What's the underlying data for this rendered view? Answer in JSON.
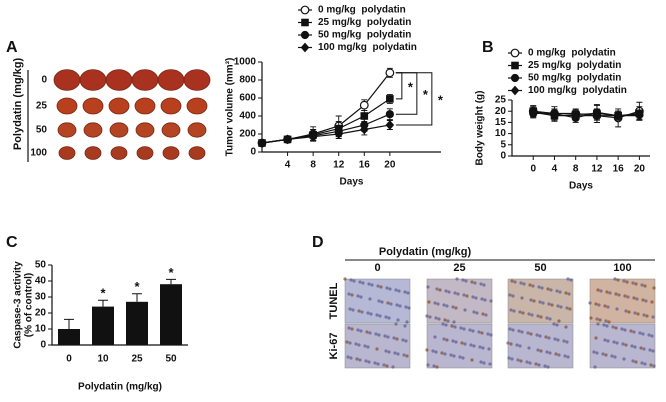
{
  "panels": [
    "A",
    "B",
    "C",
    "D"
  ],
  "tumor_photos": {
    "axis_label": "Polydatin (mg/kg)",
    "rows": [
      "0",
      "25",
      "50",
      "100"
    ]
  },
  "chart_data": [
    {
      "type": "line",
      "x_label": "Days",
      "y_label": "Tumor volume (mm³)",
      "x": [
        0,
        4,
        8,
        12,
        16,
        20
      ],
      "xlim": [
        0,
        28
      ],
      "xticks": [
        4,
        8,
        12,
        16,
        20
      ],
      "ylim": [
        0,
        1000
      ],
      "yticks": [
        0,
        200,
        400,
        600,
        800,
        1000
      ],
      "series": [
        {
          "name": "0 mg/kg  polydatin",
          "color": "#111111",
          "marker": "open-circle",
          "values": [
            100,
            140,
            200,
            290,
            520,
            880
          ],
          "errors": [
            0,
            30,
            80,
            110,
            60,
            50
          ]
        },
        {
          "name": "25 mg/kg  polydatin",
          "color": "#111111",
          "marker": "square",
          "values": [
            100,
            140,
            190,
            260,
            400,
            590
          ],
          "errors": [
            0,
            25,
            60,
            80,
            60,
            50
          ]
        },
        {
          "name": "50 mg/kg  polydatin",
          "color": "#111111",
          "marker": "circle",
          "values": [
            100,
            140,
            180,
            230,
            300,
            420
          ],
          "errors": [
            0,
            25,
            50,
            60,
            70,
            60
          ]
        },
        {
          "name": "100 mg/kg  polydatin",
          "color": "#111111",
          "marker": "diamond",
          "values": [
            100,
            140,
            170,
            200,
            250,
            300
          ],
          "errors": [
            0,
            20,
            40,
            50,
            60,
            50
          ]
        }
      ],
      "annotations": [
        "*",
        "*",
        "*"
      ]
    },
    {
      "type": "line",
      "x_label": "Days",
      "y_label": "Body weight (g)",
      "x": [
        0,
        4,
        8,
        12,
        16,
        20
      ],
      "xlim": [
        -4,
        22
      ],
      "xticks": [
        0,
        4,
        8,
        12,
        16,
        20
      ],
      "ylim": [
        0,
        25
      ],
      "yticks": [
        0,
        5,
        10,
        15,
        20,
        25
      ],
      "series": [
        {
          "name": "0 mg/kg  polydatin",
          "color": "#111111",
          "marker": "open-circle",
          "values": [
            20,
            19,
            19,
            18,
            17,
            20
          ],
          "errors": [
            2.5,
            3,
            2,
            3,
            4,
            4
          ]
        },
        {
          "name": "25 mg/kg  polydatin",
          "color": "#111111",
          "marker": "square",
          "values": [
            20,
            18,
            18.5,
            19,
            18,
            19
          ],
          "errors": [
            2,
            2.5,
            2,
            4,
            2,
            3
          ]
        },
        {
          "name": "50 mg/kg  polydatin",
          "color": "#111111",
          "marker": "circle",
          "values": [
            19,
            19,
            17,
            19.5,
            18,
            18.5
          ],
          "errors": [
            2,
            2,
            2,
            3,
            2,
            2
          ]
        },
        {
          "name": "100 mg/kg  polydatin",
          "color": "#111111",
          "marker": "diamond",
          "values": [
            19.5,
            18,
            18,
            18,
            18,
            18
          ],
          "errors": [
            2,
            2,
            2,
            2,
            2,
            2
          ]
        }
      ]
    },
    {
      "type": "bar",
      "x_label": "Polydatin (mg/kg)",
      "y_label": [
        "Caspase-3 activity",
        "(% of control)"
      ],
      "categories": [
        "0",
        "10",
        "25",
        "50"
      ],
      "values": [
        10,
        24,
        27,
        38
      ],
      "errors": [
        6,
        4,
        5,
        3
      ],
      "color": "#111111",
      "ylim": [
        0,
        50
      ],
      "yticks": [
        0,
        10,
        20,
        30,
        40,
        50
      ],
      "annotations": [
        null,
        "*",
        "*",
        "*"
      ]
    }
  ],
  "histology": {
    "title": "Polydatin (mg/kg)",
    "columns": [
      "0",
      "25",
      "50",
      "100"
    ],
    "rows": [
      "TUNEL",
      "Ki-67"
    ]
  }
}
